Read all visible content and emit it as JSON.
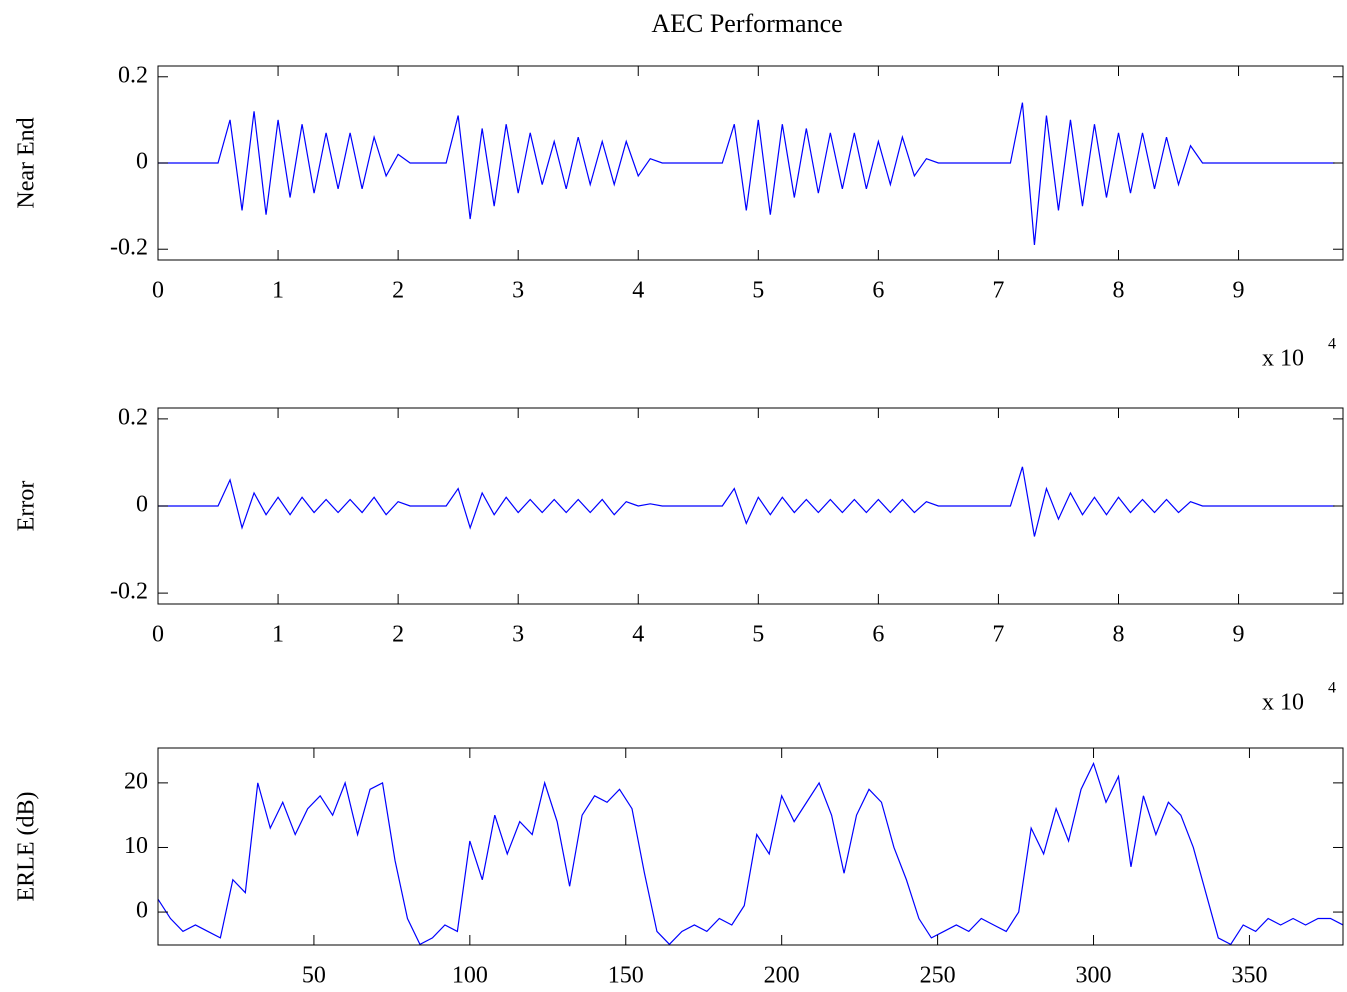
{
  "chart_data": [
    {
      "type": "line",
      "title": "AEC Performance",
      "ylabel": "Near End",
      "x_multiplier": "x 10",
      "x_exponent": "4",
      "color": "#0000ff",
      "xlim": [
        0,
        9.87
      ],
      "ylim": [
        -0.225,
        0.225
      ],
      "xticks": [
        0,
        1,
        2,
        3,
        4,
        5,
        6,
        7,
        8,
        9
      ],
      "yticks": [
        -0.2,
        0,
        0.2
      ],
      "x": [
        0,
        0.1,
        0.2,
        0.3,
        0.4,
        0.5,
        0.6,
        0.7,
        0.8,
        0.9,
        1.0,
        1.1,
        1.2,
        1.3,
        1.4,
        1.5,
        1.6,
        1.7,
        1.8,
        1.9,
        2.0,
        2.1,
        2.2,
        2.3,
        2.4,
        2.5,
        2.6,
        2.7,
        2.8,
        2.9,
        3.0,
        3.1,
        3.2,
        3.3,
        3.4,
        3.5,
        3.6,
        3.7,
        3.8,
        3.9,
        4.0,
        4.1,
        4.2,
        4.3,
        4.4,
        4.5,
        4.6,
        4.7,
        4.8,
        4.9,
        5.0,
        5.1,
        5.2,
        5.3,
        5.4,
        5.5,
        5.6,
        5.7,
        5.8,
        5.9,
        6.0,
        6.1,
        6.2,
        6.3,
        6.4,
        6.5,
        6.6,
        6.7,
        6.8,
        6.9,
        7.0,
        7.1,
        7.2,
        7.3,
        7.4,
        7.5,
        7.6,
        7.7,
        7.8,
        7.9,
        8.0,
        8.1,
        8.2,
        8.3,
        8.4,
        8.5,
        8.6,
        8.7,
        8.8,
        8.9,
        9.0,
        9.1,
        9.2,
        9.3,
        9.4,
        9.5,
        9.6,
        9.7,
        9.8
      ],
      "values": [
        0,
        0,
        0,
        0,
        0,
        0,
        0.1,
        -0.11,
        0.12,
        -0.12,
        0.1,
        -0.08,
        0.09,
        -0.07,
        0.07,
        -0.06,
        0.07,
        -0.06,
        0.06,
        -0.03,
        0.02,
        0,
        0,
        0,
        0,
        0.11,
        -0.13,
        0.08,
        -0.1,
        0.09,
        -0.07,
        0.07,
        -0.05,
        0.05,
        -0.06,
        0.06,
        -0.05,
        0.05,
        -0.05,
        0.05,
        -0.03,
        0.01,
        0,
        0,
        0,
        0,
        0,
        0,
        0.09,
        -0.11,
        0.1,
        -0.12,
        0.09,
        -0.08,
        0.08,
        -0.07,
        0.07,
        -0.06,
        0.07,
        -0.06,
        0.05,
        -0.05,
        0.06,
        -0.03,
        0.01,
        0,
        0,
        0,
        0,
        0,
        0,
        0,
        0.14,
        -0.19,
        0.11,
        -0.11,
        0.1,
        -0.1,
        0.09,
        -0.08,
        0.07,
        -0.07,
        0.07,
        -0.06,
        0.06,
        -0.05,
        0.04,
        0,
        0,
        0,
        0,
        0,
        0,
        0,
        0,
        0,
        0,
        0,
        0
      ]
    },
    {
      "type": "line",
      "ylabel": "Error",
      "x_multiplier": "x 10",
      "x_exponent": "4",
      "color": "#0000ff",
      "xlim": [
        0,
        9.87
      ],
      "ylim": [
        -0.225,
        0.225
      ],
      "xticks": [
        0,
        1,
        2,
        3,
        4,
        5,
        6,
        7,
        8,
        9
      ],
      "yticks": [
        -0.2,
        0,
        0.2
      ],
      "x": [
        0,
        0.1,
        0.2,
        0.3,
        0.4,
        0.5,
        0.6,
        0.7,
        0.8,
        0.9,
        1.0,
        1.1,
        1.2,
        1.3,
        1.4,
        1.5,
        1.6,
        1.7,
        1.8,
        1.9,
        2.0,
        2.1,
        2.2,
        2.3,
        2.4,
        2.5,
        2.6,
        2.7,
        2.8,
        2.9,
        3.0,
        3.1,
        3.2,
        3.3,
        3.4,
        3.5,
        3.6,
        3.7,
        3.8,
        3.9,
        4.0,
        4.1,
        4.2,
        4.3,
        4.4,
        4.5,
        4.6,
        4.7,
        4.8,
        4.9,
        5.0,
        5.1,
        5.2,
        5.3,
        5.4,
        5.5,
        5.6,
        5.7,
        5.8,
        5.9,
        6.0,
        6.1,
        6.2,
        6.3,
        6.4,
        6.5,
        6.6,
        6.7,
        6.8,
        6.9,
        7.0,
        7.1,
        7.2,
        7.3,
        7.4,
        7.5,
        7.6,
        7.7,
        7.8,
        7.9,
        8.0,
        8.1,
        8.2,
        8.3,
        8.4,
        8.5,
        8.6,
        8.7,
        8.8,
        8.9,
        9.0,
        9.1,
        9.2,
        9.3,
        9.4,
        9.5,
        9.6,
        9.7,
        9.8
      ],
      "values": [
        0,
        0,
        0,
        0,
        0,
        0,
        0.06,
        -0.05,
        0.03,
        -0.02,
        0.02,
        -0.02,
        0.02,
        -0.015,
        0.015,
        -0.015,
        0.015,
        -0.015,
        0.02,
        -0.02,
        0.01,
        0,
        0,
        0,
        0,
        0.04,
        -0.05,
        0.03,
        -0.02,
        0.02,
        -0.015,
        0.015,
        -0.015,
        0.015,
        -0.015,
        0.015,
        -0.015,
        0.015,
        -0.02,
        0.01,
        0,
        0.005,
        0,
        0,
        0,
        0,
        0,
        0,
        0.04,
        -0.04,
        0.02,
        -0.02,
        0.02,
        -0.015,
        0.015,
        -0.015,
        0.015,
        -0.015,
        0.015,
        -0.015,
        0.015,
        -0.015,
        0.015,
        -0.015,
        0.01,
        0,
        0,
        0,
        0,
        0,
        0,
        0,
        0.09,
        -0.07,
        0.04,
        -0.03,
        0.03,
        -0.02,
        0.02,
        -0.02,
        0.02,
        -0.015,
        0.015,
        -0.015,
        0.015,
        -0.015,
        0.01,
        0,
        0,
        0,
        0,
        0,
        0,
        0,
        0,
        0,
        0,
        0,
        0
      ]
    },
    {
      "type": "line",
      "ylabel": "ERLE (dB)",
      "color": "#0000ff",
      "xlim": [
        0,
        380
      ],
      "ylim": [
        -5.1,
        25.4
      ],
      "xticks": [
        50,
        100,
        150,
        200,
        250,
        300,
        350
      ],
      "yticks": [
        0,
        10,
        20
      ],
      "x": [
        0,
        4,
        8,
        12,
        16,
        20,
        24,
        28,
        32,
        36,
        40,
        44,
        48,
        52,
        56,
        60,
        64,
        68,
        72,
        76,
        80,
        84,
        88,
        92,
        96,
        100,
        104,
        108,
        112,
        116,
        120,
        124,
        128,
        132,
        136,
        140,
        144,
        148,
        152,
        156,
        160,
        164,
        168,
        172,
        176,
        180,
        184,
        188,
        192,
        196,
        200,
        204,
        208,
        212,
        216,
        220,
        224,
        228,
        232,
        236,
        240,
        244,
        248,
        252,
        256,
        260,
        264,
        268,
        272,
        276,
        280,
        284,
        288,
        292,
        296,
        300,
        304,
        308,
        312,
        316,
        320,
        324,
        328,
        332,
        336,
        340,
        344,
        348,
        352,
        356,
        360,
        364,
        368,
        372,
        376,
        380
      ],
      "values": [
        2,
        -1,
        -3,
        -2,
        -3,
        -4,
        5,
        3,
        20,
        13,
        17,
        12,
        16,
        18,
        15,
        20,
        12,
        19,
        20,
        8,
        -1,
        -5,
        -4,
        -2,
        -3,
        11,
        5,
        15,
        9,
        14,
        12,
        20,
        14,
        4,
        15,
        18,
        17,
        19,
        16,
        6,
        -3,
        -5,
        -3,
        -2,
        -3,
        -1,
        -2,
        1,
        12,
        9,
        18,
        14,
        17,
        20,
        15,
        6,
        15,
        19,
        17,
        10,
        5,
        -1,
        -4,
        -3,
        -2,
        -3,
        -1,
        -2,
        -3,
        0,
        13,
        9,
        16,
        11,
        19,
        23,
        17,
        21,
        7,
        18,
        12,
        17,
        15,
        10,
        3,
        -4,
        -5,
        -2,
        -3,
        -1,
        -2,
        -1,
        -2,
        -1,
        -1,
        -2
      ]
    }
  ]
}
